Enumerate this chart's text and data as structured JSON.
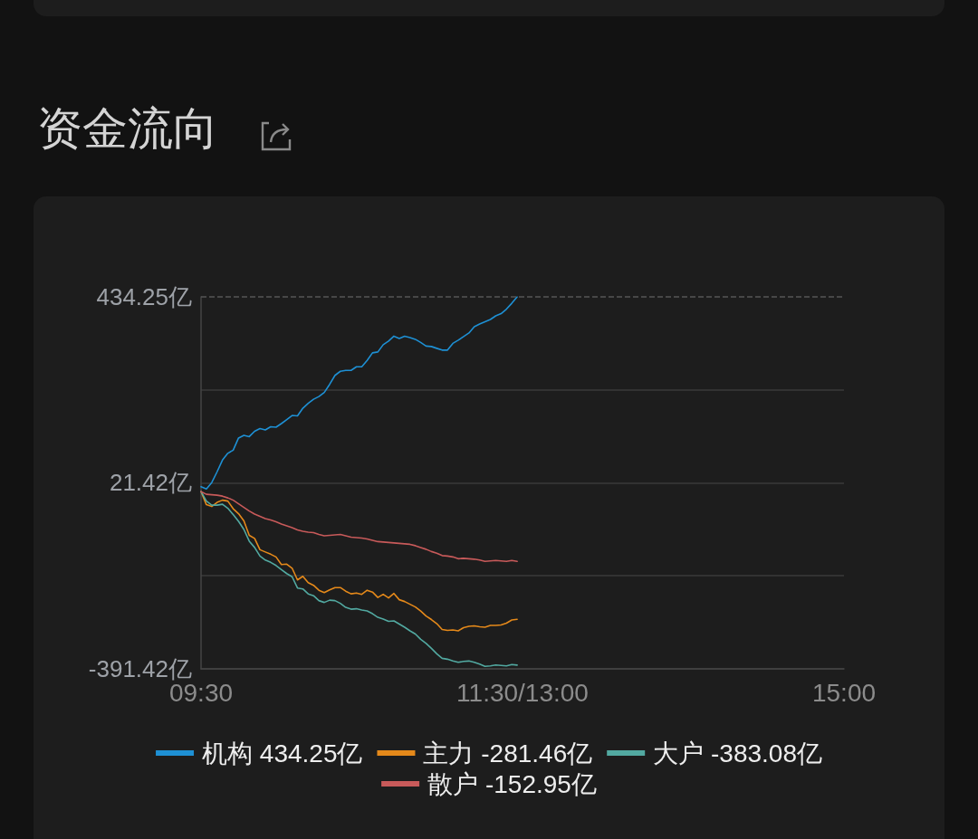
{
  "chart_data": {
    "type": "line",
    "title": "资金流向",
    "categories": [
      "09:30",
      null,
      null,
      null,
      null,
      null,
      null,
      null,
      null,
      null,
      null,
      null,
      null,
      null,
      null,
      null,
      null,
      null,
      null,
      null,
      null,
      null,
      null,
      null,
      null,
      null,
      null,
      null,
      null,
      null,
      null,
      null,
      null,
      null,
      null,
      null,
      null,
      null,
      null,
      null,
      null,
      null,
      null,
      null,
      null,
      null,
      null,
      null,
      null,
      null,
      null,
      null,
      null,
      null,
      null,
      null,
      null,
      null,
      null,
      null,
      "11:30/13:00",
      null,
      null,
      null,
      null,
      null,
      null,
      null,
      null,
      null,
      null,
      null,
      null,
      null,
      null,
      null,
      null,
      null,
      null,
      null,
      null,
      null,
      null,
      null,
      null,
      null,
      null,
      null,
      null,
      null,
      null,
      null,
      null,
      null,
      null,
      null,
      null,
      null,
      null,
      null,
      null,
      null,
      null,
      null,
      null,
      null,
      null,
      null,
      null,
      null,
      null,
      null,
      null,
      null,
      null,
      null,
      null,
      null,
      null,
      null,
      "15:00"
    ],
    "ylim": [
      -391.42,
      434.25
    ],
    "yticks": [
      {
        "value": -391.42,
        "label": "-391.42亿"
      },
      {
        "value": -185,
        "label": null
      },
      {
        "value": 21.42,
        "label": "21.42亿"
      },
      {
        "value": 227.835,
        "label": null
      },
      {
        "value": 434.25,
        "label": "434.25亿"
      }
    ],
    "grid": "y",
    "legend": "bottom",
    "marker": "none",
    "ref_lines": [
      {
        "axis": "y",
        "value": 434.25,
        "color": "#555555",
        "line_style": "dashed"
      }
    ],
    "series": [
      {
        "name": "机构 434.25亿",
        "color": "#1e90d4",
        "values": [
          13,
          8,
          22,
          46,
          72,
          87,
          94,
          121,
          127,
          124,
          136,
          142,
          139,
          146,
          145,
          153,
          162,
          171,
          170,
          187,
          198,
          207,
          213,
          222,
          240,
          260,
          269,
          271,
          271,
          279,
          279,
          293,
          310,
          312,
          328,
          336,
          347,
          342,
          347,
          344,
          340,
          333,
          325,
          324,
          320,
          316,
          316,
          331,
          338,
          346,
          354,
          368,
          374,
          379,
          384,
          392,
          397,
          407,
          420,
          434.25,
          null,
          null,
          null,
          null,
          null,
          null,
          null,
          null,
          null,
          null,
          null,
          null,
          null,
          null,
          null,
          null,
          null,
          null,
          null,
          null,
          null,
          null,
          null,
          null,
          null,
          null,
          null,
          null,
          null,
          null,
          null,
          null,
          null,
          null,
          null,
          null,
          null,
          null,
          null,
          null,
          null,
          null,
          null,
          null,
          null,
          null,
          null,
          null,
          null,
          null,
          null,
          null,
          null,
          null,
          null,
          null,
          null,
          null,
          null,
          null,
          null
        ]
      },
      {
        "name": "主力 -281.46亿",
        "color": "#e5891a",
        "values": [
          2,
          -27,
          -31,
          -22,
          -17,
          -19,
          -36,
          -47,
          -63,
          -95,
          -102,
          -127,
          -132,
          -137,
          -143,
          -160,
          -159,
          -168,
          -194,
          -186,
          -200,
          -206,
          -217,
          -222,
          -216,
          -211,
          -211,
          -219,
          -225,
          -223,
          -226,
          -217,
          -221,
          -233,
          -226,
          -234,
          -224,
          -238,
          -242,
          -248,
          -254,
          -263,
          -274,
          -282,
          -291,
          -304,
          -306,
          -305,
          -307,
          -300,
          -297,
          -296,
          -298,
          -299,
          -295,
          -295,
          -294,
          -290,
          -283,
          -281.46,
          null,
          null,
          null,
          null,
          null,
          null,
          null,
          null,
          null,
          null,
          null,
          null,
          null,
          null,
          null,
          null,
          null,
          null,
          null,
          null,
          null,
          null,
          null,
          null,
          null,
          null,
          null,
          null,
          null,
          null,
          null,
          null,
          null,
          null,
          null,
          null,
          null,
          null,
          null,
          null,
          null,
          null,
          null,
          null,
          null,
          null,
          null,
          null,
          null,
          null,
          null,
          null,
          null,
          null,
          null,
          null,
          null,
          null,
          null,
          null,
          null
        ]
      },
      {
        "name": "大户 -383.08亿",
        "color": "#52a9a1",
        "values": [
          2,
          -19,
          -28,
          -28,
          -26,
          -35,
          -49,
          -64,
          -82,
          -108,
          -122,
          -141,
          -150,
          -155,
          -162,
          -171,
          -180,
          -187,
          -212,
          -214,
          -225,
          -229,
          -240,
          -244,
          -239,
          -240,
          -246,
          -255,
          -259,
          -258,
          -261,
          -263,
          -269,
          -277,
          -281,
          -286,
          -285,
          -292,
          -299,
          -307,
          -314,
          -326,
          -335,
          -346,
          -358,
          -368,
          -370,
          -374,
          -377,
          -375,
          -374,
          -377,
          -381,
          -386,
          -385,
          -383,
          -384,
          -385,
          -382,
          -383.08,
          null,
          null,
          null,
          null,
          null,
          null,
          null,
          null,
          null,
          null,
          null,
          null,
          null,
          null,
          null,
          null,
          null,
          null,
          null,
          null,
          null,
          null,
          null,
          null,
          null,
          null,
          null,
          null,
          null,
          null,
          null,
          null,
          null,
          null,
          null,
          null,
          null,
          null,
          null,
          null,
          null,
          null,
          null,
          null,
          null,
          null,
          null,
          null,
          null,
          null,
          null,
          null,
          null,
          null,
          null,
          null,
          null,
          null,
          null,
          null,
          null
        ]
      },
      {
        "name": "散户 -152.95亿",
        "color": "#c85a5a",
        "values": [
          2,
          -4,
          -5,
          -6,
          -8,
          -12,
          -17,
          -25,
          -33,
          -41,
          -48,
          -53,
          -58,
          -61,
          -65,
          -70,
          -74,
          -78,
          -83,
          -86,
          -88,
          -89,
          -93,
          -96,
          -95,
          -94,
          -93,
          -96,
          -99,
          -100,
          -101,
          -103,
          -106,
          -109,
          -110,
          -111,
          -112,
          -113,
          -114,
          -115,
          -118,
          -122,
          -126,
          -131,
          -135,
          -140,
          -141,
          -143,
          -147,
          -146,
          -147,
          -148,
          -150,
          -153,
          -152,
          -151,
          -152,
          -153,
          -151,
          -152.95,
          null,
          null,
          null,
          null,
          null,
          null,
          null,
          null,
          null,
          null,
          null,
          null,
          null,
          null,
          null,
          null,
          null,
          null,
          null,
          null,
          null,
          null,
          null,
          null,
          null,
          null,
          null,
          null,
          null,
          null,
          null,
          null,
          null,
          null,
          null,
          null,
          null,
          null,
          null,
          null,
          null,
          null,
          null,
          null,
          null,
          null,
          null,
          null,
          null,
          null,
          null,
          null,
          null,
          null,
          null,
          null,
          null,
          null,
          null,
          null,
          null
        ]
      }
    ]
  }
}
